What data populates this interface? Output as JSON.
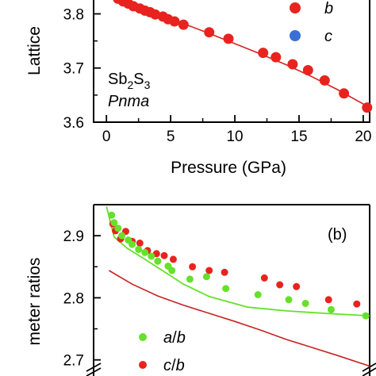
{
  "chart_data": [
    {
      "panel": "top",
      "type": "scatter",
      "xlabel": "Pressure (GPa)",
      "ylabel": "Lattice",
      "xlim": [
        -1,
        20.5
      ],
      "ylim": [
        3.6,
        3.83
      ],
      "x_ticks": [
        "0",
        "5",
        "10",
        "15",
        "20"
      ],
      "y_ticks": [
        "3.6",
        "3.7",
        "3.8"
      ],
      "annotations": {
        "formula_main": "Sb",
        "formula_sub1": "2",
        "formula_mid": "S",
        "formula_sub2": "3",
        "space_group": "Pnma"
      },
      "legend": [
        {
          "label": "b",
          "color": "#e8231f"
        },
        {
          "label": "c",
          "color": "#3a6fd8"
        }
      ],
      "series": [
        {
          "name": "b",
          "color": "#e8231f",
          "points": [
            [
              0.9,
              3.828
            ],
            [
              1.3,
              3.823
            ],
            [
              1.7,
              3.819
            ],
            [
              2.1,
              3.814
            ],
            [
              2.6,
              3.81
            ],
            [
              3.0,
              3.806
            ],
            [
              3.4,
              3.803
            ],
            [
              3.8,
              3.799
            ],
            [
              4.4,
              3.795
            ],
            [
              4.8,
              3.79
            ],
            [
              5.3,
              3.786
            ],
            [
              6.0,
              3.78
            ],
            [
              8.0,
              3.766
            ],
            [
              9.5,
              3.754
            ],
            [
              12.2,
              3.728
            ],
            [
              13.2,
              3.72
            ],
            [
              14.5,
              3.707
            ],
            [
              15.7,
              3.696
            ],
            [
              17.0,
              3.677
            ],
            [
              18.5,
              3.653
            ],
            [
              20.3,
              3.627
            ]
          ],
          "fit": [
            [
              0.0,
              3.842
            ],
            [
              2.0,
              3.82
            ],
            [
              4.0,
              3.801
            ],
            [
              6.0,
              3.782
            ],
            [
              8.0,
              3.764
            ],
            [
              10.0,
              3.745
            ],
            [
              12.0,
              3.726
            ],
            [
              14.0,
              3.706
            ],
            [
              16.0,
              3.684
            ],
            [
              18.0,
              3.66
            ],
            [
              20.5,
              3.627
            ]
          ]
        }
      ]
    },
    {
      "panel": "bottom",
      "type": "scatter",
      "panel_label": "(b)",
      "ylabel": "meter ratios",
      "xlim": [
        -1,
        20.5
      ],
      "ylim": [
        2.66,
        2.95
      ],
      "y_ticks": [
        "2.7",
        "2.8",
        "2.9"
      ],
      "legend": [
        {
          "label_a": "a",
          "label_b": "b",
          "color": "#66e02a"
        },
        {
          "label_a": "c",
          "label_b": "b",
          "color": "#e8231f"
        }
      ],
      "series": [
        {
          "name": "a/b",
          "color": "#66e02a",
          "points": [
            [
              0.4,
              2.933
            ],
            [
              0.6,
              2.921
            ],
            [
              0.9,
              2.912
            ],
            [
              1.2,
              2.9
            ],
            [
              1.7,
              2.893
            ],
            [
              2.0,
              2.886
            ],
            [
              2.5,
              2.878
            ],
            [
              3.0,
              2.873
            ],
            [
              3.5,
              2.867
            ],
            [
              4.0,
              2.859
            ],
            [
              4.8,
              2.851
            ],
            [
              5.1,
              2.844
            ],
            [
              6.5,
              2.83
            ],
            [
              7.8,
              2.834
            ],
            [
              9.3,
              2.815
            ],
            [
              11.8,
              2.805
            ],
            [
              14.2,
              2.797
            ],
            [
              15.5,
              2.791
            ],
            [
              17.5,
              2.781
            ],
            [
              20.2,
              2.771
            ]
          ],
          "fit": [
            [
              0.0,
              2.947
            ],
            [
              0.6,
              2.898
            ],
            [
              1.6,
              2.88
            ],
            [
              3.0,
              2.862
            ],
            [
              4.5,
              2.842
            ],
            [
              6.0,
              2.822
            ],
            [
              8.0,
              2.802
            ],
            [
              11.0,
              2.785
            ],
            [
              14.0,
              2.779
            ],
            [
              17.0,
              2.775
            ],
            [
              20.5,
              2.771
            ]
          ]
        },
        {
          "name": "c/b",
          "color": "#e8231f",
          "points": [
            [
              0.5,
              2.919
            ],
            [
              0.7,
              2.908
            ],
            [
              1.1,
              2.895
            ],
            [
              1.5,
              2.907
            ],
            [
              2.0,
              2.891
            ],
            [
              2.6,
              2.888
            ],
            [
              3.2,
              2.876
            ],
            [
              3.9,
              2.871
            ],
            [
              4.5,
              2.868
            ],
            [
              5.2,
              2.862
            ],
            [
              6.7,
              2.85
            ],
            [
              8.0,
              2.844
            ],
            [
              9.2,
              2.841
            ],
            [
              12.3,
              2.832
            ],
            [
              13.5,
              2.821
            ],
            [
              14.8,
              2.818
            ],
            [
              17.3,
              2.797
            ],
            [
              19.5,
              2.79
            ]
          ],
          "fit": [
            [
              0.2,
              2.844
            ],
            [
              2.0,
              2.822
            ],
            [
              4.0,
              2.803
            ],
            [
              6.0,
              2.788
            ],
            [
              8.0,
              2.775
            ],
            [
              10.0,
              2.762
            ],
            [
              12.0,
              2.748
            ],
            [
              14.0,
              2.733
            ],
            [
              16.0,
              2.72
            ],
            [
              18.0,
              2.707
            ],
            [
              20.5,
              2.69
            ]
          ]
        }
      ]
    }
  ]
}
